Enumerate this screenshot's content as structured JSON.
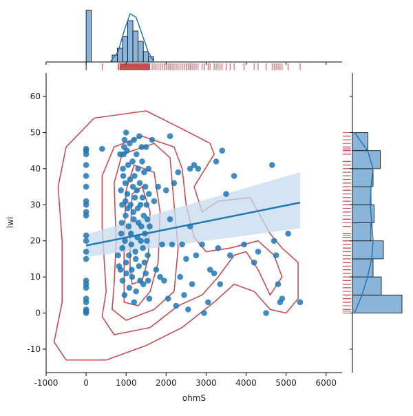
{
  "chart_data": {
    "type": "scatter",
    "xlabel": "ohmS",
    "ylabel": "lwi",
    "xlim": [
      -1000,
      6400
    ],
    "ylim": [
      -16.5,
      66.5
    ],
    "x_ticks": [
      -1000,
      0,
      1000,
      2000,
      3000,
      4000,
      5000,
      6000
    ],
    "y_ticks": [
      -10,
      0,
      10,
      20,
      30,
      40,
      50,
      60
    ],
    "points": [
      [
        0,
        0
      ],
      [
        0,
        0.5
      ],
      [
        0,
        1
      ],
      [
        0,
        3
      ],
      [
        0,
        4
      ],
      [
        0,
        7
      ],
      [
        0,
        8
      ],
      [
        0,
        9
      ],
      [
        0,
        15
      ],
      [
        0,
        17
      ],
      [
        0,
        20
      ],
      [
        0,
        21.5
      ],
      [
        0,
        27
      ],
      [
        0,
        28
      ],
      [
        0,
        30
      ],
      [
        0,
        31
      ],
      [
        0,
        35
      ],
      [
        0,
        38
      ],
      [
        0,
        41
      ],
      [
        0,
        44
      ],
      [
        0,
        45
      ],
      [
        0,
        45.5
      ],
      [
        400,
        45.5
      ],
      [
        800,
        16
      ],
      [
        820,
        13
      ],
      [
        850,
        44
      ],
      [
        860,
        12
      ],
      [
        870,
        34
      ],
      [
        880,
        22
      ],
      [
        890,
        25
      ],
      [
        900,
        30
      ],
      [
        905,
        18
      ],
      [
        910,
        9
      ],
      [
        920,
        40
      ],
      [
        930,
        38
      ],
      [
        940,
        44
      ],
      [
        950,
        46
      ],
      [
        960,
        48
      ],
      [
        960,
        5
      ],
      [
        970,
        20
      ],
      [
        980,
        36
      ],
      [
        985,
        31
      ],
      [
        990,
        27
      ],
      [
        1000,
        50
      ],
      [
        1000,
        14
      ],
      [
        1010,
        11
      ],
      [
        1020,
        45
      ],
      [
        1030,
        33
      ],
      [
        1040,
        29
      ],
      [
        1050,
        41
      ],
      [
        1060,
        24
      ],
      [
        1070,
        16
      ],
      [
        1080,
        7
      ],
      [
        1090,
        47
      ],
      [
        1100,
        37
      ],
      [
        1110,
        30
      ],
      [
        1120,
        22
      ],
      [
        1130,
        19
      ],
      [
        1140,
        12
      ],
      [
        1150,
        10
      ],
      [
        1160,
        42
      ],
      [
        1170,
        35
      ],
      [
        1180,
        28
      ],
      [
        1190,
        26
      ],
      [
        1200,
        48
      ],
      [
        1200,
        3
      ],
      [
        1210,
        38
      ],
      [
        1220,
        32
      ],
      [
        1230,
        17
      ],
      [
        1240,
        15
      ],
      [
        1250,
        6
      ],
      [
        1260,
        44
      ],
      [
        1270,
        34
      ],
      [
        1280,
        21
      ],
      [
        1290,
        29
      ],
      [
        1300,
        40
      ],
      [
        1310,
        25
      ],
      [
        1320,
        13
      ],
      [
        1330,
        49
      ],
      [
        1340,
        36
      ],
      [
        1350,
        9
      ],
      [
        1360,
        30
      ],
      [
        1370,
        20
      ],
      [
        1380,
        24
      ],
      [
        1390,
        46
      ],
      [
        1400,
        42
      ],
      [
        1410,
        32
      ],
      [
        1420,
        18
      ],
      [
        1430,
        8
      ],
      [
        1440,
        27
      ],
      [
        1450,
        39
      ],
      [
        1460,
        14
      ],
      [
        1470,
        22
      ],
      [
        1480,
        35
      ],
      [
        1490,
        11
      ],
      [
        1500,
        46
      ],
      [
        1510,
        30
      ],
      [
        1520,
        20
      ],
      [
        1530,
        26
      ],
      [
        1540,
        16
      ],
      [
        1550,
        9
      ],
      [
        1560,
        40
      ],
      [
        1570,
        33
      ],
      [
        1580,
        4
      ],
      [
        1590,
        24
      ],
      [
        1650,
        48
      ],
      [
        1700,
        31
      ],
      [
        1750,
        12
      ],
      [
        1800,
        35
      ],
      [
        1850,
        10
      ],
      [
        1900,
        19
      ],
      [
        1950,
        9
      ],
      [
        2000,
        34
      ],
      [
        2050,
        4
      ],
      [
        2100,
        49
      ],
      [
        2100,
        26
      ],
      [
        2150,
        19
      ],
      [
        2200,
        36
      ],
      [
        2250,
        2
      ],
      [
        2300,
        39
      ],
      [
        2350,
        10
      ],
      [
        2400,
        19
      ],
      [
        2450,
        5
      ],
      [
        2500,
        15
      ],
      [
        2550,
        1
      ],
      [
        2600,
        40
      ],
      [
        2600,
        24
      ],
      [
        2650,
        8
      ],
      [
        2700,
        41
      ],
      [
        2750,
        16
      ],
      [
        2800,
        40
      ],
      [
        2900,
        19
      ],
      [
        2950,
        0
      ],
      [
        3050,
        3
      ],
      [
        3100,
        12
      ],
      [
        3200,
        11
      ],
      [
        3250,
        42
      ],
      [
        3300,
        18
      ],
      [
        3350,
        8
      ],
      [
        3400,
        45
      ],
      [
        3500,
        33
      ],
      [
        3600,
        16
      ],
      [
        3700,
        38
      ],
      [
        3950,
        19
      ],
      [
        4200,
        14
      ],
      [
        4300,
        17
      ],
      [
        4500,
        0
      ],
      [
        4650,
        41
      ],
      [
        4700,
        20
      ],
      [
        4750,
        16
      ],
      [
        4800,
        8
      ],
      [
        4850,
        3
      ],
      [
        4900,
        4
      ],
      [
        5050,
        22
      ],
      [
        5350,
        3
      ]
    ],
    "regression": {
      "x_start": 0,
      "x_end": 5350,
      "y_start": 18.7,
      "y_end": 30.6,
      "ci_low_end": 23.5,
      "ci_high_end": 39.0,
      "ci_low_start": 15.5,
      "ci_high_start": 21.8
    },
    "x_hist": {
      "bins": [
        [
          0,
          130,
          60
        ],
        [
          130,
          260,
          0
        ],
        [
          260,
          390,
          0
        ],
        [
          390,
          520,
          0
        ],
        [
          520,
          650,
          0
        ],
        [
          650,
          780,
          8
        ],
        [
          780,
          910,
          16
        ],
        [
          910,
          1040,
          30
        ],
        [
          1040,
          1170,
          48
        ],
        [
          1170,
          1300,
          36
        ],
        [
          1300,
          1430,
          24
        ],
        [
          1430,
          1560,
          12
        ],
        [
          1560,
          1690,
          6
        ],
        [
          1690,
          1820,
          0
        ]
      ]
    },
    "y_hist": {
      "bins": [
        [
          0,
          5,
          48
        ],
        [
          5,
          10,
          28
        ],
        [
          10,
          15,
          20
        ],
        [
          15,
          20,
          30
        ],
        [
          20,
          25,
          18
        ],
        [
          25,
          30,
          21
        ],
        [
          30,
          35,
          18
        ],
        [
          35,
          40,
          20
        ],
        [
          40,
          45,
          27
        ],
        [
          45,
          50,
          15
        ]
      ]
    },
    "colors": {
      "points": "#1f77b4",
      "line": "#1f77b4",
      "ci": "#c6dbef",
      "kde": "#c44e52",
      "rug": "#c44e52",
      "hist": "#8ab4d8"
    }
  }
}
